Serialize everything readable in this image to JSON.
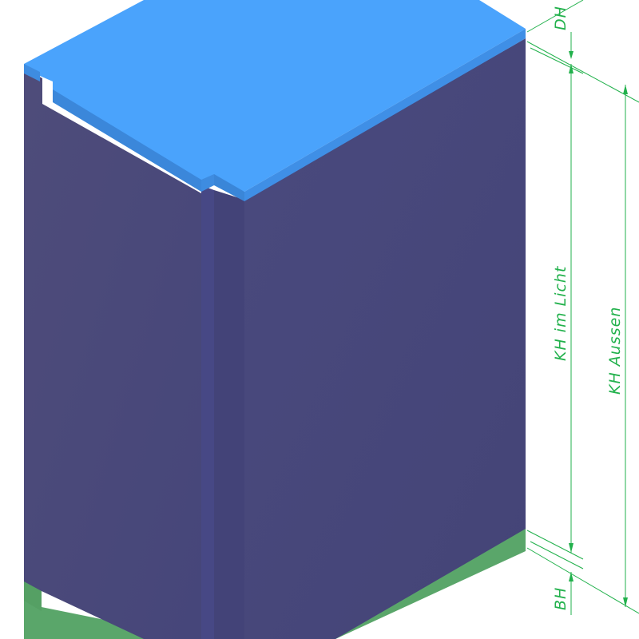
{
  "dimensions": {
    "dh_label": "DH",
    "kh_im_licht_label": "KH im Licht",
    "kh_aussen_label": "KH Aussen",
    "bh_label": "BH"
  },
  "colors": {
    "lid": "#4aa3fc",
    "lid_side": "#3f8ee0",
    "body_left": "#4b4a78",
    "body_right": "#47477a",
    "groove": "#434376",
    "base": "#5aa66a",
    "dimension": "#22b14c"
  }
}
